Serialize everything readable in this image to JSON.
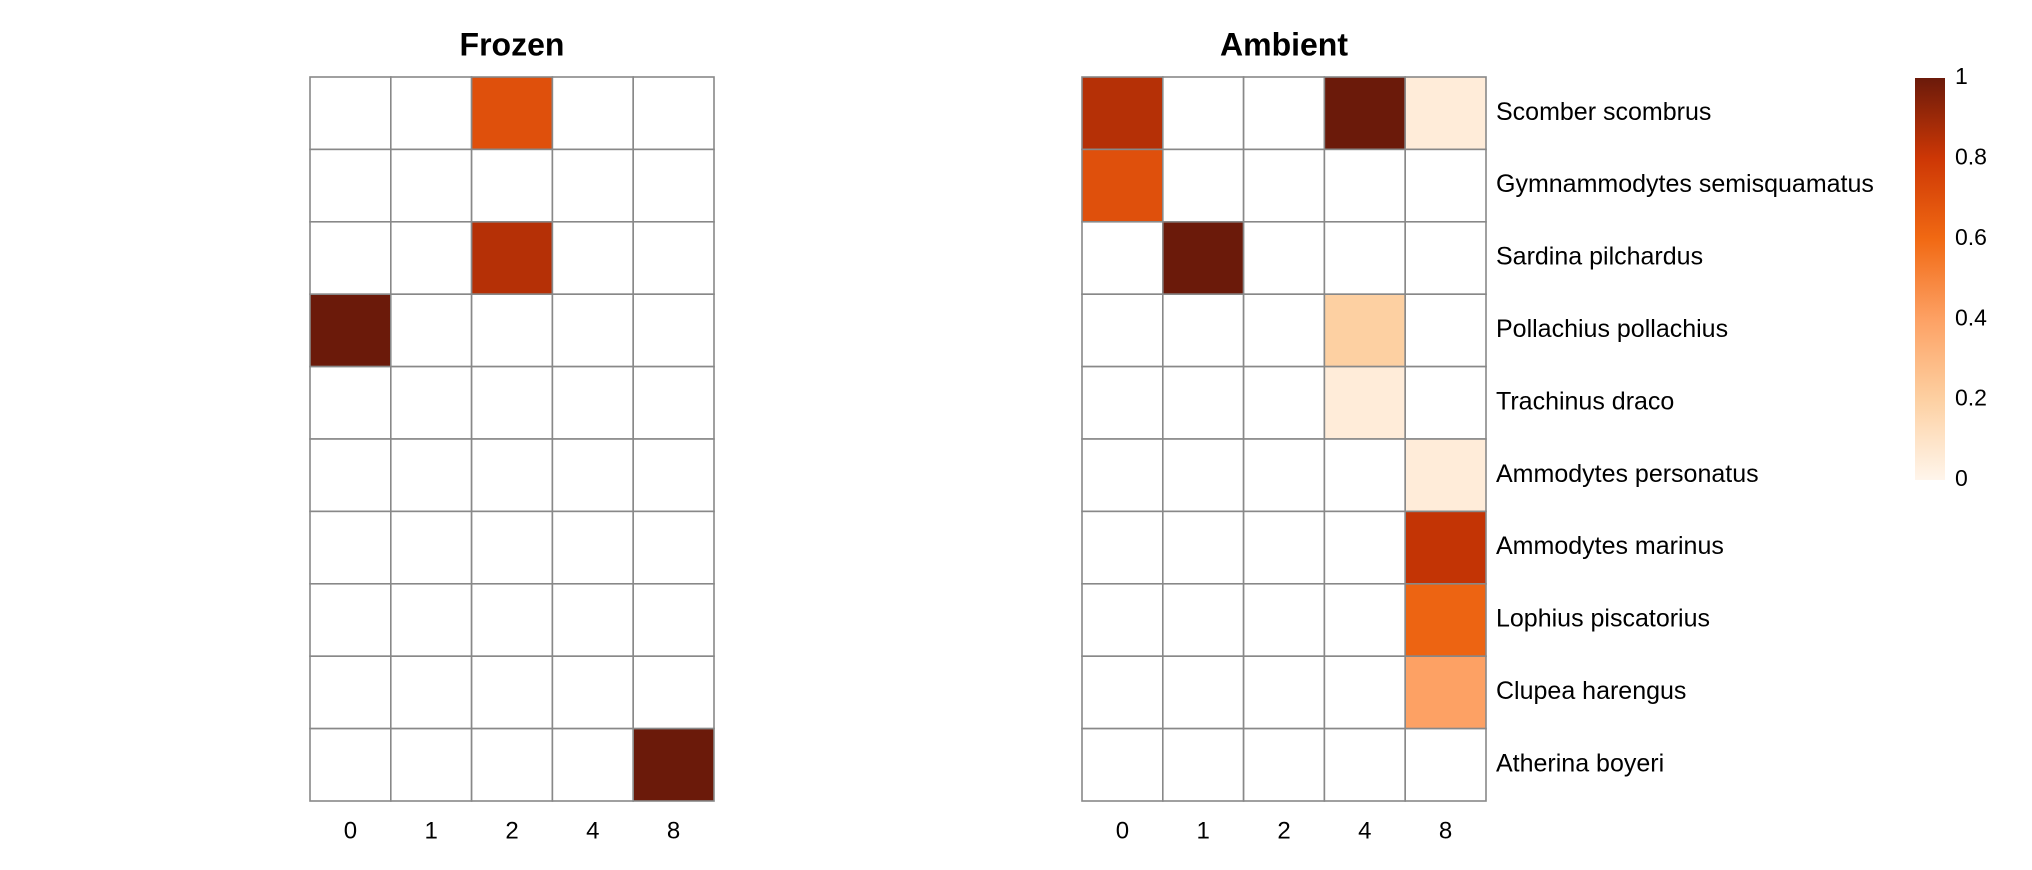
{
  "chart_data": {
    "type": "heatmap",
    "x": [
      "0",
      "1",
      "2",
      "4",
      "8"
    ],
    "y": [
      "Scomber scombrus",
      "Gymnammodytes semisquamatus",
      "Sardina pilchardus",
      "Pollachius pollachius",
      "Trachinus draco",
      "Ammodytes personatus",
      "Ammodytes marinus",
      "Lophius piscatorius",
      "Clupea harengus",
      "Atherina boyeri"
    ],
    "panels": [
      {
        "title": "Frozen",
        "values": [
          [
            0,
            0,
            0.7,
            0,
            0
          ],
          [
            0,
            0,
            0,
            0,
            0
          ],
          [
            0,
            0,
            0.85,
            0,
            0
          ],
          [
            1,
            0,
            0,
            0,
            0
          ],
          [
            0,
            0,
            0,
            0,
            0
          ],
          [
            0,
            0,
            0,
            0,
            0
          ],
          [
            0,
            0,
            0,
            0,
            0
          ],
          [
            0,
            0,
            0,
            0,
            0
          ],
          [
            0,
            0,
            0,
            0,
            0
          ],
          [
            0,
            0,
            0,
            0,
            1
          ]
        ]
      },
      {
        "title": "Ambient",
        "values": [
          [
            0.85,
            0,
            0,
            1,
            0.05
          ],
          [
            0.7,
            0,
            0,
            0,
            0
          ],
          [
            0,
            1,
            0,
            0,
            0
          ],
          [
            0,
            0,
            0,
            0.2,
            0
          ],
          [
            0,
            0,
            0,
            0.05,
            0
          ],
          [
            0,
            0,
            0,
            0,
            0.05
          ],
          [
            0,
            0,
            0,
            0,
            0.82
          ],
          [
            0,
            0,
            0,
            0,
            0.62
          ],
          [
            0,
            0,
            0,
            0,
            0.4
          ],
          [
            0,
            0,
            0,
            0,
            0
          ]
        ]
      }
    ],
    "legend": {
      "ticks": [
        "0",
        "0.2",
        "0.4",
        "0.6",
        "0.8",
        "1"
      ],
      "range": [
        0,
        1
      ],
      "placement": "right",
      "color_low": "#fff5eb",
      "color_high": "#6b1a0a"
    },
    "grid": true
  }
}
